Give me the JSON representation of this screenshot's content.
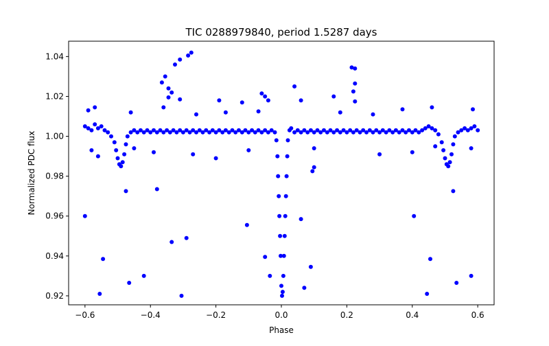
{
  "chart_data": {
    "type": "scatter",
    "title": "TIC 0288979840, period 1.5287 days",
    "xlabel": "Phase",
    "ylabel": "Normalized PDC flux",
    "xlim": [
      -0.65,
      0.65
    ],
    "ylim": [
      0.9155,
      1.0477
    ],
    "x_ticks": [
      -0.6,
      -0.4,
      -0.2,
      0.0,
      0.2,
      0.4,
      0.6
    ],
    "x_tick_labels": [
      "−0.6",
      "−0.4",
      "−0.2",
      "0.0",
      "0.2",
      "0.4",
      "0.6"
    ],
    "y_ticks": [
      0.92,
      0.94,
      0.96,
      0.98,
      1.0,
      1.02,
      1.04
    ],
    "y_tick_labels": [
      "0.92",
      "0.94",
      "0.96",
      "0.98",
      "1.00",
      "1.02",
      "1.04"
    ],
    "grid": false,
    "legend": "none",
    "marker_color": "#0000ff",
    "series": [
      {
        "points": [
          [
            -0.6,
            1.005
          ],
          [
            -0.59,
            1.004
          ],
          [
            -0.58,
            1.003
          ],
          [
            -0.57,
            1.006
          ],
          [
            -0.56,
            1.004
          ],
          [
            -0.55,
            1.005
          ],
          [
            -0.54,
            1.003
          ],
          [
            -0.53,
            1.002
          ],
          [
            -0.52,
            1.0
          ],
          [
            -0.51,
            0.997
          ],
          [
            -0.505,
            0.993
          ],
          [
            -0.5,
            0.989
          ],
          [
            -0.495,
            0.986
          ],
          [
            -0.49,
            0.985
          ],
          [
            -0.485,
            0.987
          ],
          [
            -0.48,
            0.991
          ],
          [
            -0.475,
            0.996
          ],
          [
            -0.47,
            1.0
          ],
          [
            -0.46,
            1.002
          ],
          [
            -0.45,
            1.003
          ],
          [
            -0.44,
            1.002
          ],
          [
            -0.43,
            1.003
          ],
          [
            -0.42,
            1.002
          ],
          [
            -0.41,
            1.003
          ],
          [
            -0.4,
            1.002
          ],
          [
            -0.39,
            1.003
          ],
          [
            -0.38,
            1.002
          ],
          [
            -0.37,
            1.003
          ],
          [
            -0.36,
            1.002
          ],
          [
            -0.35,
            1.003
          ],
          [
            -0.34,
            1.002
          ],
          [
            -0.33,
            1.003
          ],
          [
            -0.32,
            1.002
          ],
          [
            -0.31,
            1.003
          ],
          [
            -0.3,
            1.002
          ],
          [
            -0.29,
            1.003
          ],
          [
            -0.28,
            1.002
          ],
          [
            -0.27,
            1.003
          ],
          [
            -0.26,
            1.002
          ],
          [
            -0.25,
            1.003
          ],
          [
            -0.24,
            1.002
          ],
          [
            -0.23,
            1.003
          ],
          [
            -0.22,
            1.002
          ],
          [
            -0.21,
            1.003
          ],
          [
            -0.2,
            1.002
          ],
          [
            -0.19,
            1.003
          ],
          [
            -0.18,
            1.002
          ],
          [
            -0.17,
            1.003
          ],
          [
            -0.16,
            1.002
          ],
          [
            -0.15,
            1.003
          ],
          [
            -0.14,
            1.002
          ],
          [
            -0.13,
            1.003
          ],
          [
            -0.12,
            1.002
          ],
          [
            -0.11,
            1.003
          ],
          [
            -0.1,
            1.002
          ],
          [
            -0.09,
            1.003
          ],
          [
            -0.08,
            1.002
          ],
          [
            -0.07,
            1.003
          ],
          [
            -0.06,
            1.002
          ],
          [
            -0.05,
            1.003
          ],
          [
            -0.04,
            1.002
          ],
          [
            -0.03,
            1.003
          ],
          [
            -0.02,
            1.002
          ],
          [
            -0.015,
            0.998
          ],
          [
            -0.012,
            0.99
          ],
          [
            -0.01,
            0.98
          ],
          [
            -0.008,
            0.97
          ],
          [
            -0.006,
            0.96
          ],
          [
            -0.004,
            0.95
          ],
          [
            -0.002,
            0.94
          ],
          [
            0.0,
            0.925
          ],
          [
            0.002,
            0.92
          ],
          [
            0.004,
            0.922
          ],
          [
            0.006,
            0.93
          ],
          [
            0.008,
            0.94
          ],
          [
            0.01,
            0.95
          ],
          [
            0.012,
            0.96
          ],
          [
            0.014,
            0.97
          ],
          [
            0.016,
            0.98
          ],
          [
            0.018,
            0.99
          ],
          [
            0.02,
            0.998
          ],
          [
            0.025,
            1.003
          ],
          [
            0.03,
            1.004
          ],
          [
            0.04,
            1.002
          ],
          [
            0.05,
            1.003
          ],
          [
            0.06,
            1.002
          ],
          [
            0.07,
            1.003
          ],
          [
            0.08,
            1.002
          ],
          [
            0.09,
            1.003
          ],
          [
            0.1,
            1.002
          ],
          [
            0.11,
            1.003
          ],
          [
            0.12,
            1.002
          ],
          [
            0.13,
            1.003
          ],
          [
            0.14,
            1.002
          ],
          [
            0.15,
            1.003
          ],
          [
            0.16,
            1.002
          ],
          [
            0.17,
            1.003
          ],
          [
            0.18,
            1.002
          ],
          [
            0.19,
            1.003
          ],
          [
            0.2,
            1.002
          ],
          [
            0.21,
            1.003
          ],
          [
            0.22,
            1.002
          ],
          [
            0.23,
            1.003
          ],
          [
            0.24,
            1.002
          ],
          [
            0.25,
            1.003
          ],
          [
            0.26,
            1.002
          ],
          [
            0.27,
            1.003
          ],
          [
            0.28,
            1.002
          ],
          [
            0.29,
            1.003
          ],
          [
            0.3,
            1.002
          ],
          [
            0.31,
            1.003
          ],
          [
            0.32,
            1.002
          ],
          [
            0.33,
            1.003
          ],
          [
            0.34,
            1.002
          ],
          [
            0.35,
            1.003
          ],
          [
            0.36,
            1.002
          ],
          [
            0.37,
            1.003
          ],
          [
            0.38,
            1.002
          ],
          [
            0.39,
            1.003
          ],
          [
            0.4,
            1.002
          ],
          [
            0.41,
            1.003
          ],
          [
            0.42,
            1.002
          ],
          [
            0.43,
            1.003
          ],
          [
            0.44,
            1.004
          ],
          [
            0.45,
            1.005
          ],
          [
            0.46,
            1.004
          ],
          [
            0.47,
            1.003
          ],
          [
            0.48,
            1.001
          ],
          [
            0.49,
            0.997
          ],
          [
            0.495,
            0.993
          ],
          [
            0.5,
            0.989
          ],
          [
            0.505,
            0.986
          ],
          [
            0.51,
            0.985
          ],
          [
            0.515,
            0.987
          ],
          [
            0.52,
            0.991
          ],
          [
            0.525,
            0.996
          ],
          [
            0.53,
            1.0
          ],
          [
            0.54,
            1.002
          ],
          [
            0.55,
            1.003
          ],
          [
            0.56,
            1.004
          ],
          [
            0.57,
            1.003
          ],
          [
            0.58,
            1.004
          ],
          [
            0.59,
            1.005
          ],
          [
            0.6,
            1.003
          ],
          [
            -0.6,
            0.96
          ],
          [
            -0.555,
            0.921
          ],
          [
            -0.545,
            0.9385
          ],
          [
            -0.465,
            0.9265
          ],
          [
            -0.42,
            0.93
          ],
          [
            -0.305,
            0.92
          ],
          [
            -0.335,
            0.947
          ],
          [
            -0.29,
            0.949
          ],
          [
            -0.38,
            0.9735
          ],
          [
            -0.475,
            0.9725
          ],
          [
            -0.105,
            0.9555
          ],
          [
            -0.05,
            0.9395
          ],
          [
            -0.035,
            0.93
          ],
          [
            0.07,
            0.924
          ],
          [
            0.09,
            0.9345
          ],
          [
            0.06,
            0.9585
          ],
          [
            0.095,
            0.9825
          ],
          [
            0.1,
            0.9845
          ],
          [
            0.405,
            0.96
          ],
          [
            0.445,
            0.921
          ],
          [
            0.455,
            0.9385
          ],
          [
            0.535,
            0.9265
          ],
          [
            0.58,
            0.93
          ],
          [
            0.525,
            0.9725
          ],
          [
            -0.275,
            1.042
          ],
          [
            -0.285,
            1.0405
          ],
          [
            -0.31,
            1.0385
          ],
          [
            -0.325,
            1.036
          ],
          [
            -0.355,
            1.03
          ],
          [
            -0.365,
            1.027
          ],
          [
            -0.345,
            1.024
          ],
          [
            -0.335,
            1.022
          ],
          [
            -0.345,
            1.0195
          ],
          [
            -0.31,
            1.0185
          ],
          [
            -0.12,
            1.017
          ],
          [
            -0.06,
            1.0215
          ],
          [
            -0.05,
            1.02
          ],
          [
            -0.04,
            1.018
          ],
          [
            0.04,
            1.025
          ],
          [
            0.06,
            1.018
          ],
          [
            0.16,
            1.02
          ],
          [
            0.215,
            1.0345
          ],
          [
            0.225,
            1.034
          ],
          [
            0.225,
            1.0265
          ],
          [
            0.22,
            1.0225
          ],
          [
            0.225,
            1.0175
          ],
          [
            -0.19,
            1.018
          ],
          [
            -0.58,
            0.993
          ],
          [
            -0.56,
            0.99
          ],
          [
            -0.45,
            0.994
          ],
          [
            -0.39,
            0.992
          ],
          [
            -0.27,
            0.991
          ],
          [
            -0.2,
            0.989
          ],
          [
            -0.1,
            0.993
          ],
          [
            0.1,
            0.994
          ],
          [
            0.3,
            0.991
          ],
          [
            0.4,
            0.992
          ],
          [
            0.47,
            0.995
          ],
          [
            0.58,
            0.994
          ],
          [
            -0.59,
            1.013
          ],
          [
            -0.57,
            1.0145
          ],
          [
            -0.46,
            1.012
          ],
          [
            -0.36,
            1.0145
          ],
          [
            -0.26,
            1.011
          ],
          [
            -0.17,
            1.012
          ],
          [
            -0.07,
            1.0125
          ],
          [
            0.18,
            1.012
          ],
          [
            0.28,
            1.011
          ],
          [
            0.37,
            1.0135
          ],
          [
            0.46,
            1.0145
          ],
          [
            0.585,
            1.0135
          ]
        ]
      }
    ]
  }
}
